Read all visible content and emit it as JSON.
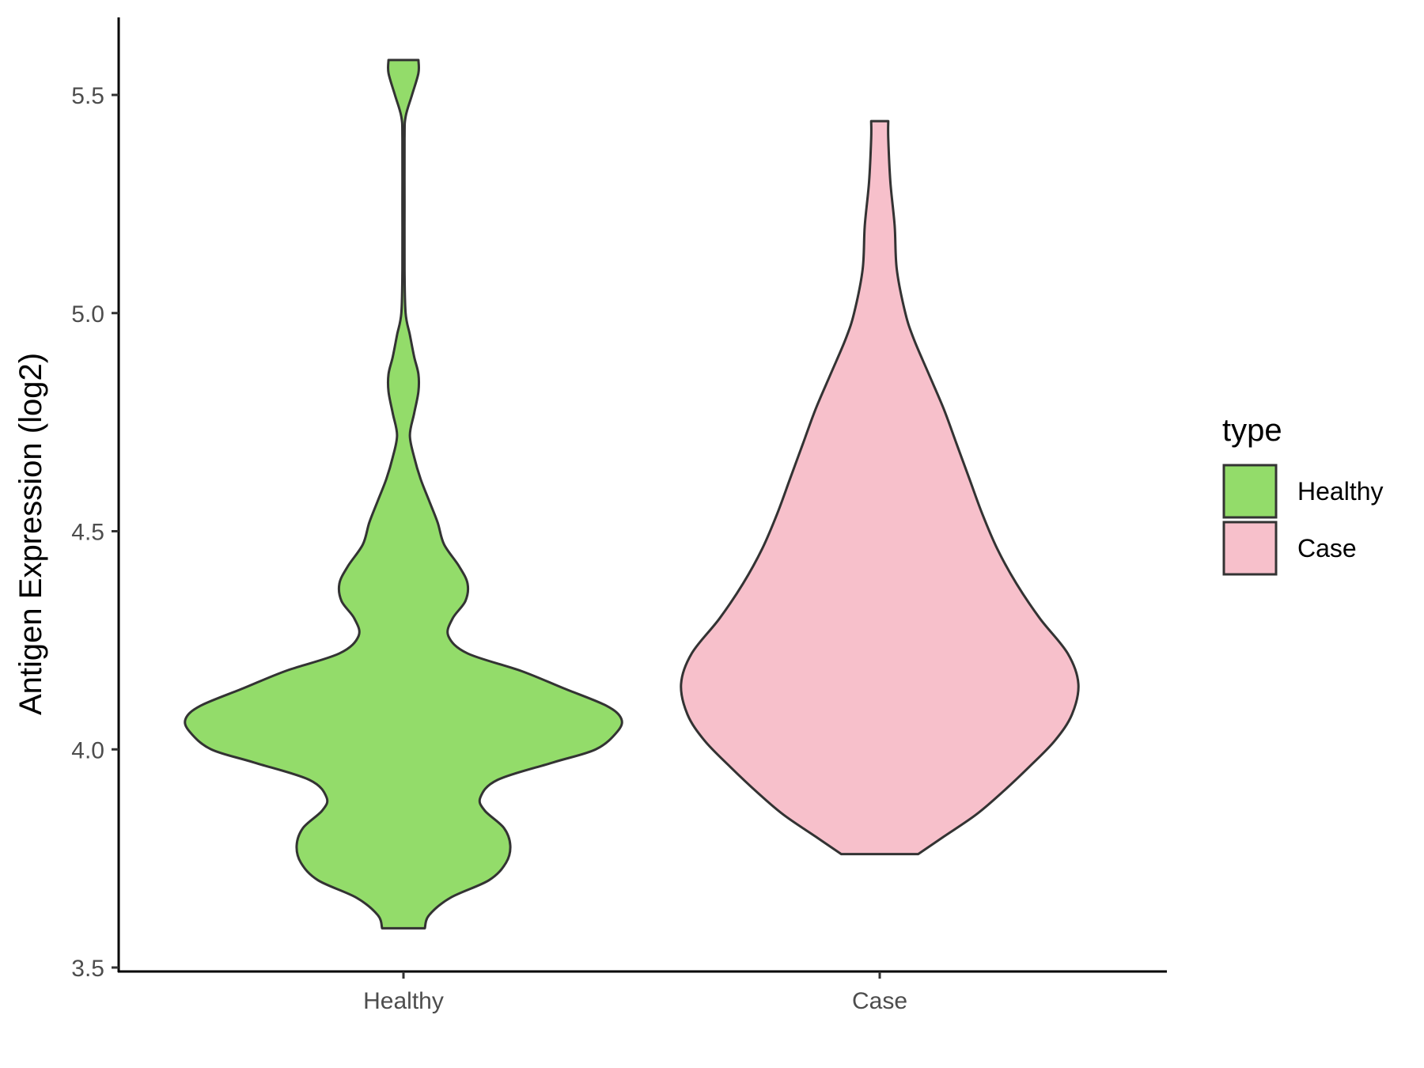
{
  "chart_data": {
    "type": "violin",
    "title": "",
    "xlabel": "",
    "ylabel": "Antigen Expression (log2)",
    "ylim": [
      3.5,
      5.68
    ],
    "yticks": [
      3.5,
      4.0,
      4.5,
      5.0,
      5.5
    ],
    "ytick_labels": [
      "3.5",
      "4.0",
      "4.5",
      "5.0",
      "5.5"
    ],
    "categories": [
      "Healthy",
      "Case"
    ],
    "grid": false,
    "legend": {
      "title": "type",
      "position": "right",
      "entries": [
        {
          "label": "Healthy",
          "color": "#93dc6a"
        },
        {
          "label": "Case",
          "color": "#f7c0cb"
        }
      ]
    },
    "series": [
      {
        "name": "Healthy",
        "color": "#93dc6a",
        "min": 3.59,
        "max": 5.58,
        "density_profile": [
          [
            3.59,
            0.1
          ],
          [
            3.62,
            0.12
          ],
          [
            3.66,
            0.22
          ],
          [
            3.7,
            0.4
          ],
          [
            3.74,
            0.48
          ],
          [
            3.78,
            0.5
          ],
          [
            3.82,
            0.47
          ],
          [
            3.86,
            0.38
          ],
          [
            3.89,
            0.36
          ],
          [
            3.93,
            0.44
          ],
          [
            3.97,
            0.7
          ],
          [
            4.0,
            0.9
          ],
          [
            4.04,
            1.0
          ],
          [
            4.07,
            1.02
          ],
          [
            4.1,
            0.95
          ],
          [
            4.14,
            0.75
          ],
          [
            4.18,
            0.55
          ],
          [
            4.22,
            0.3
          ],
          [
            4.26,
            0.21
          ],
          [
            4.3,
            0.23
          ],
          [
            4.34,
            0.29
          ],
          [
            4.38,
            0.3
          ],
          [
            4.42,
            0.26
          ],
          [
            4.47,
            0.19
          ],
          [
            4.52,
            0.16
          ],
          [
            4.57,
            0.12
          ],
          [
            4.62,
            0.08
          ],
          [
            4.67,
            0.05
          ],
          [
            4.72,
            0.03
          ],
          [
            4.77,
            0.05
          ],
          [
            4.82,
            0.07
          ],
          [
            4.86,
            0.07
          ],
          [
            4.9,
            0.05
          ],
          [
            4.95,
            0.03
          ],
          [
            5.0,
            0.01
          ],
          [
            5.1,
            0.005
          ],
          [
            5.25,
            0.005
          ],
          [
            5.4,
            0.005
          ],
          [
            5.45,
            0.01
          ],
          [
            5.5,
            0.04
          ],
          [
            5.55,
            0.07
          ],
          [
            5.58,
            0.07
          ]
        ]
      },
      {
        "name": "Case",
        "color": "#f7c0cb",
        "min": 3.76,
        "max": 5.44,
        "density_profile": [
          [
            3.76,
            0.18
          ],
          [
            3.8,
            0.3
          ],
          [
            3.85,
            0.45
          ],
          [
            3.9,
            0.57
          ],
          [
            3.96,
            0.7
          ],
          [
            4.02,
            0.82
          ],
          [
            4.08,
            0.9
          ],
          [
            4.15,
            0.93
          ],
          [
            4.22,
            0.88
          ],
          [
            4.3,
            0.75
          ],
          [
            4.38,
            0.64
          ],
          [
            4.46,
            0.55
          ],
          [
            4.54,
            0.48
          ],
          [
            4.62,
            0.42
          ],
          [
            4.7,
            0.36
          ],
          [
            4.78,
            0.3
          ],
          [
            4.86,
            0.23
          ],
          [
            4.94,
            0.16
          ],
          [
            5.0,
            0.12
          ],
          [
            5.1,
            0.08
          ],
          [
            5.2,
            0.07
          ],
          [
            5.3,
            0.05
          ],
          [
            5.4,
            0.04
          ],
          [
            5.44,
            0.04
          ]
        ]
      }
    ]
  }
}
